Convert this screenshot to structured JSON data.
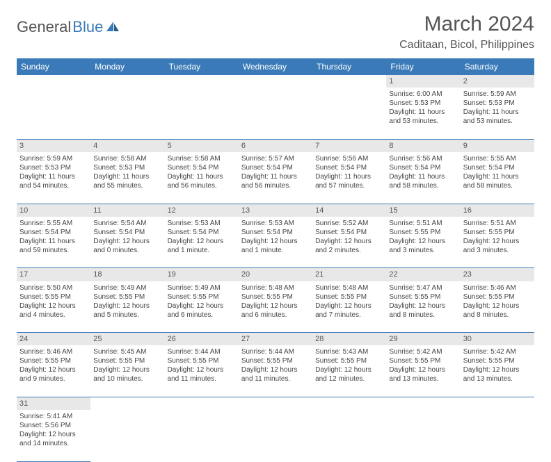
{
  "brand": {
    "part1": "General",
    "part2": "Blue"
  },
  "title": "March 2024",
  "location": "Caditaan, Bicol, Philippines",
  "colors": {
    "header_bg": "#3a7ab8",
    "daynum_bg": "#e8e8e8",
    "row_divider": "#3a7ab8"
  },
  "day_headers": [
    "Sunday",
    "Monday",
    "Tuesday",
    "Wednesday",
    "Thursday",
    "Friday",
    "Saturday"
  ],
  "weeks": [
    {
      "nums": [
        "",
        "",
        "",
        "",
        "",
        "1",
        "2"
      ],
      "cells": [
        null,
        null,
        null,
        null,
        null,
        {
          "sunrise": "Sunrise: 6:00 AM",
          "sunset": "Sunset: 5:53 PM",
          "day1": "Daylight: 11 hours",
          "day2": "and 53 minutes."
        },
        {
          "sunrise": "Sunrise: 5:59 AM",
          "sunset": "Sunset: 5:53 PM",
          "day1": "Daylight: 11 hours",
          "day2": "and 53 minutes."
        }
      ]
    },
    {
      "nums": [
        "3",
        "4",
        "5",
        "6",
        "7",
        "8",
        "9"
      ],
      "cells": [
        {
          "sunrise": "Sunrise: 5:59 AM",
          "sunset": "Sunset: 5:53 PM",
          "day1": "Daylight: 11 hours",
          "day2": "and 54 minutes."
        },
        {
          "sunrise": "Sunrise: 5:58 AM",
          "sunset": "Sunset: 5:53 PM",
          "day1": "Daylight: 11 hours",
          "day2": "and 55 minutes."
        },
        {
          "sunrise": "Sunrise: 5:58 AM",
          "sunset": "Sunset: 5:54 PM",
          "day1": "Daylight: 11 hours",
          "day2": "and 56 minutes."
        },
        {
          "sunrise": "Sunrise: 5:57 AM",
          "sunset": "Sunset: 5:54 PM",
          "day1": "Daylight: 11 hours",
          "day2": "and 56 minutes."
        },
        {
          "sunrise": "Sunrise: 5:56 AM",
          "sunset": "Sunset: 5:54 PM",
          "day1": "Daylight: 11 hours",
          "day2": "and 57 minutes."
        },
        {
          "sunrise": "Sunrise: 5:56 AM",
          "sunset": "Sunset: 5:54 PM",
          "day1": "Daylight: 11 hours",
          "day2": "and 58 minutes."
        },
        {
          "sunrise": "Sunrise: 5:55 AM",
          "sunset": "Sunset: 5:54 PM",
          "day1": "Daylight: 11 hours",
          "day2": "and 58 minutes."
        }
      ]
    },
    {
      "nums": [
        "10",
        "11",
        "12",
        "13",
        "14",
        "15",
        "16"
      ],
      "cells": [
        {
          "sunrise": "Sunrise: 5:55 AM",
          "sunset": "Sunset: 5:54 PM",
          "day1": "Daylight: 11 hours",
          "day2": "and 59 minutes."
        },
        {
          "sunrise": "Sunrise: 5:54 AM",
          "sunset": "Sunset: 5:54 PM",
          "day1": "Daylight: 12 hours",
          "day2": "and 0 minutes."
        },
        {
          "sunrise": "Sunrise: 5:53 AM",
          "sunset": "Sunset: 5:54 PM",
          "day1": "Daylight: 12 hours",
          "day2": "and 1 minute."
        },
        {
          "sunrise": "Sunrise: 5:53 AM",
          "sunset": "Sunset: 5:54 PM",
          "day1": "Daylight: 12 hours",
          "day2": "and 1 minute."
        },
        {
          "sunrise": "Sunrise: 5:52 AM",
          "sunset": "Sunset: 5:54 PM",
          "day1": "Daylight: 12 hours",
          "day2": "and 2 minutes."
        },
        {
          "sunrise": "Sunrise: 5:51 AM",
          "sunset": "Sunset: 5:55 PM",
          "day1": "Daylight: 12 hours",
          "day2": "and 3 minutes."
        },
        {
          "sunrise": "Sunrise: 5:51 AM",
          "sunset": "Sunset: 5:55 PM",
          "day1": "Daylight: 12 hours",
          "day2": "and 3 minutes."
        }
      ]
    },
    {
      "nums": [
        "17",
        "18",
        "19",
        "20",
        "21",
        "22",
        "23"
      ],
      "cells": [
        {
          "sunrise": "Sunrise: 5:50 AM",
          "sunset": "Sunset: 5:55 PM",
          "day1": "Daylight: 12 hours",
          "day2": "and 4 minutes."
        },
        {
          "sunrise": "Sunrise: 5:49 AM",
          "sunset": "Sunset: 5:55 PM",
          "day1": "Daylight: 12 hours",
          "day2": "and 5 minutes."
        },
        {
          "sunrise": "Sunrise: 5:49 AM",
          "sunset": "Sunset: 5:55 PM",
          "day1": "Daylight: 12 hours",
          "day2": "and 6 minutes."
        },
        {
          "sunrise": "Sunrise: 5:48 AM",
          "sunset": "Sunset: 5:55 PM",
          "day1": "Daylight: 12 hours",
          "day2": "and 6 minutes."
        },
        {
          "sunrise": "Sunrise: 5:48 AM",
          "sunset": "Sunset: 5:55 PM",
          "day1": "Daylight: 12 hours",
          "day2": "and 7 minutes."
        },
        {
          "sunrise": "Sunrise: 5:47 AM",
          "sunset": "Sunset: 5:55 PM",
          "day1": "Daylight: 12 hours",
          "day2": "and 8 minutes."
        },
        {
          "sunrise": "Sunrise: 5:46 AM",
          "sunset": "Sunset: 5:55 PM",
          "day1": "Daylight: 12 hours",
          "day2": "and 8 minutes."
        }
      ]
    },
    {
      "nums": [
        "24",
        "25",
        "26",
        "27",
        "28",
        "29",
        "30"
      ],
      "cells": [
        {
          "sunrise": "Sunrise: 5:46 AM",
          "sunset": "Sunset: 5:55 PM",
          "day1": "Daylight: 12 hours",
          "day2": "and 9 minutes."
        },
        {
          "sunrise": "Sunrise: 5:45 AM",
          "sunset": "Sunset: 5:55 PM",
          "day1": "Daylight: 12 hours",
          "day2": "and 10 minutes."
        },
        {
          "sunrise": "Sunrise: 5:44 AM",
          "sunset": "Sunset: 5:55 PM",
          "day1": "Daylight: 12 hours",
          "day2": "and 11 minutes."
        },
        {
          "sunrise": "Sunrise: 5:44 AM",
          "sunset": "Sunset: 5:55 PM",
          "day1": "Daylight: 12 hours",
          "day2": "and 11 minutes."
        },
        {
          "sunrise": "Sunrise: 5:43 AM",
          "sunset": "Sunset: 5:55 PM",
          "day1": "Daylight: 12 hours",
          "day2": "and 12 minutes."
        },
        {
          "sunrise": "Sunrise: 5:42 AM",
          "sunset": "Sunset: 5:55 PM",
          "day1": "Daylight: 12 hours",
          "day2": "and 13 minutes."
        },
        {
          "sunrise": "Sunrise: 5:42 AM",
          "sunset": "Sunset: 5:55 PM",
          "day1": "Daylight: 12 hours",
          "day2": "and 13 minutes."
        }
      ]
    },
    {
      "nums": [
        "31",
        "",
        "",
        "",
        "",
        "",
        ""
      ],
      "cells": [
        {
          "sunrise": "Sunrise: 5:41 AM",
          "sunset": "Sunset: 5:56 PM",
          "day1": "Daylight: 12 hours",
          "day2": "and 14 minutes."
        },
        null,
        null,
        null,
        null,
        null,
        null
      ]
    }
  ]
}
